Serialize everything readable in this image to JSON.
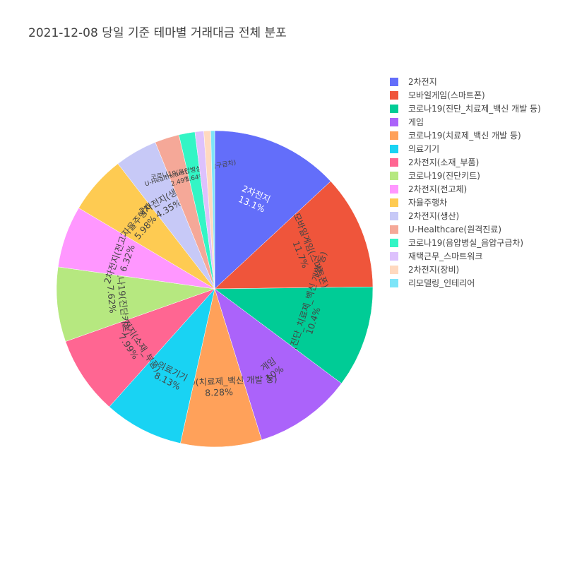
{
  "chart_data": {
    "type": "pie",
    "title": "2021-12-08 당일 기준 테마별 거래대금 전체 분포",
    "legend_position": "right",
    "slices": [
      {
        "label": "2차전지",
        "value": 13.1,
        "text": "13.1%",
        "color": "#636efa",
        "text_color": "#ffffff"
      },
      {
        "label": "모바일게임(스마트폰)",
        "value": 11.7,
        "text": "11.7%",
        "color": "#EF553B",
        "text_color": "#444444"
      },
      {
        "label": "코로나19(진단_치료제_백신 개발 등)",
        "value": 10.4,
        "text": "10.4%",
        "color": "#00cc96",
        "text_color": "#444444"
      },
      {
        "label": "게임",
        "value": 10.0,
        "text": "10%",
        "color": "#ab63fa",
        "text_color": "#444444"
      },
      {
        "label": "코로나19(치료제_백신 개발 등)",
        "value": 8.28,
        "text": "8.28%",
        "color": "#FFA15A",
        "text_color": "#444444"
      },
      {
        "label": "의료기기",
        "value": 8.13,
        "text": "8.13%",
        "color": "#19d3f3",
        "text_color": "#444444"
      },
      {
        "label": "2차전지(소재_부품)",
        "value": 7.99,
        "text": "7.99%",
        "color": "#FF6692",
        "text_color": "#444444"
      },
      {
        "label": "코로나19(진단키트)",
        "value": 7.62,
        "text": "7.62%",
        "color": "#B6E880",
        "text_color": "#444444"
      },
      {
        "label": "2차전지(전고체)",
        "value": 6.32,
        "text": "6.32%",
        "color": "#FF97FF",
        "text_color": "#444444"
      },
      {
        "label": "자율주행차",
        "value": 5.98,
        "text": "5.98%",
        "color": "#FECB52",
        "text_color": "#444444"
      },
      {
        "label": "2차전지(생산)",
        "value": 4.35,
        "text": "4.35%",
        "color": "#c7c9f7",
        "text_color": "#444444"
      },
      {
        "label": "U-Healthcare(원격진료)",
        "value": 2.49,
        "text": "2.49%",
        "color": "#f5a898",
        "text_color": "#444444"
      },
      {
        "label": "코로나19(음압병실_음압구급차)",
        "value": 1.64,
        "text": "1.64%",
        "color": "#33f5c5",
        "text_color": "#444444"
      },
      {
        "label": "재택근무_스마트워크",
        "value": 0.9,
        "text": "",
        "color": "#ddc1fd",
        "text_color": "#444444"
      },
      {
        "label": "2차전지(장비)",
        "value": 0.7,
        "text": "",
        "color": "#ffd9bf",
        "text_color": "#444444"
      },
      {
        "label": "리모델링_인테리어",
        "value": 0.4,
        "text": "",
        "color": "#7de5f8",
        "text_color": "#444444"
      }
    ]
  }
}
